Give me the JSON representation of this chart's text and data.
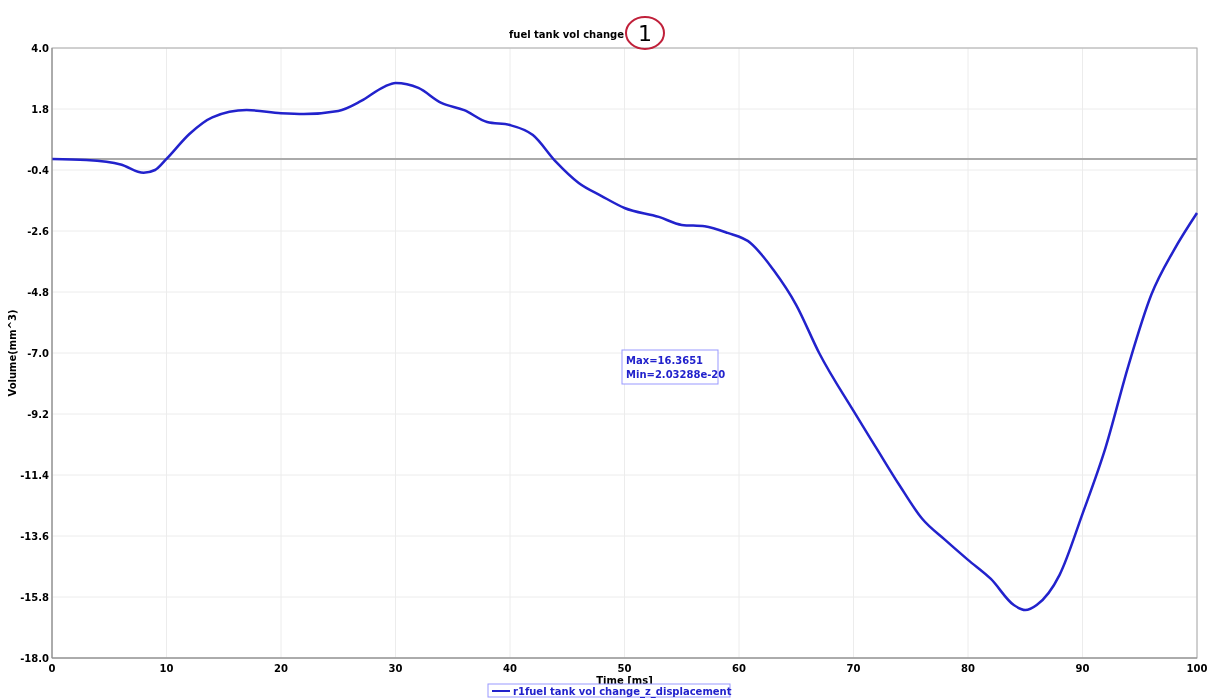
{
  "chart_data": {
    "type": "line",
    "title": "fuel tank vol change",
    "xlabel": "Time [ms]",
    "ylabel": "Volume(mm^3)",
    "annotations": [
      "1",
      "Max=16.3651",
      "Min=2.03288e-20"
    ],
    "x": [
      0,
      3,
      6,
      8,
      9,
      10,
      12,
      14,
      17,
      20,
      22,
      25,
      27,
      29,
      30,
      32,
      34,
      36,
      38,
      40,
      42,
      44,
      46,
      48,
      50,
      53,
      55,
      57,
      59,
      61,
      63,
      65,
      67,
      70,
      72,
      74,
      76,
      78,
      80,
      82,
      84,
      85,
      86,
      88,
      90,
      92,
      94,
      96,
      98,
      100
    ],
    "series": [
      {
        "name": "r1fuel tank vol change_z_displacement",
        "color": "#2222cc",
        "values": [
          0.0,
          -0.04,
          -0.2,
          -0.5,
          -0.4,
          0.0,
          0.9,
          1.5,
          1.76,
          1.65,
          1.62,
          1.73,
          2.09,
          2.6,
          2.74,
          2.56,
          2.02,
          1.76,
          1.33,
          1.22,
          0.86,
          -0.1,
          -0.87,
          -1.34,
          -1.77,
          -2.09,
          -2.38,
          -2.43,
          -2.67,
          -3.03,
          -4.0,
          -5.27,
          -7.0,
          -9.09,
          -10.43,
          -11.76,
          -12.98,
          -13.74,
          -14.46,
          -15.15,
          -16.09,
          -16.27,
          -16.09,
          -15.0,
          -12.8,
          -10.43,
          -7.47,
          -4.91,
          -3.28,
          -1.95
        ]
      }
    ],
    "xlim": [
      0,
      100
    ],
    "xticks": [
      0,
      10,
      20,
      30,
      40,
      50,
      60,
      70,
      80,
      90,
      100
    ],
    "ylim": [
      -18,
      4
    ],
    "yticks": [
      {
        "value": 4,
        "label": "4.0"
      },
      1.8,
      -0.4,
      -2.6,
      -4.8,
      {
        "value": -7,
        "label": "-7.0"
      },
      -9.2,
      -11.4,
      -13.6,
      -15.8,
      {
        "value": -18,
        "label": "-18.0"
      }
    ],
    "ref_lines": [
      {
        "axis": "y",
        "value": 0,
        "label": null,
        "color": "#aaaaaa"
      }
    ],
    "grid": true,
    "legend": "bottom",
    "marker": "none",
    "line_style": "solid"
  }
}
